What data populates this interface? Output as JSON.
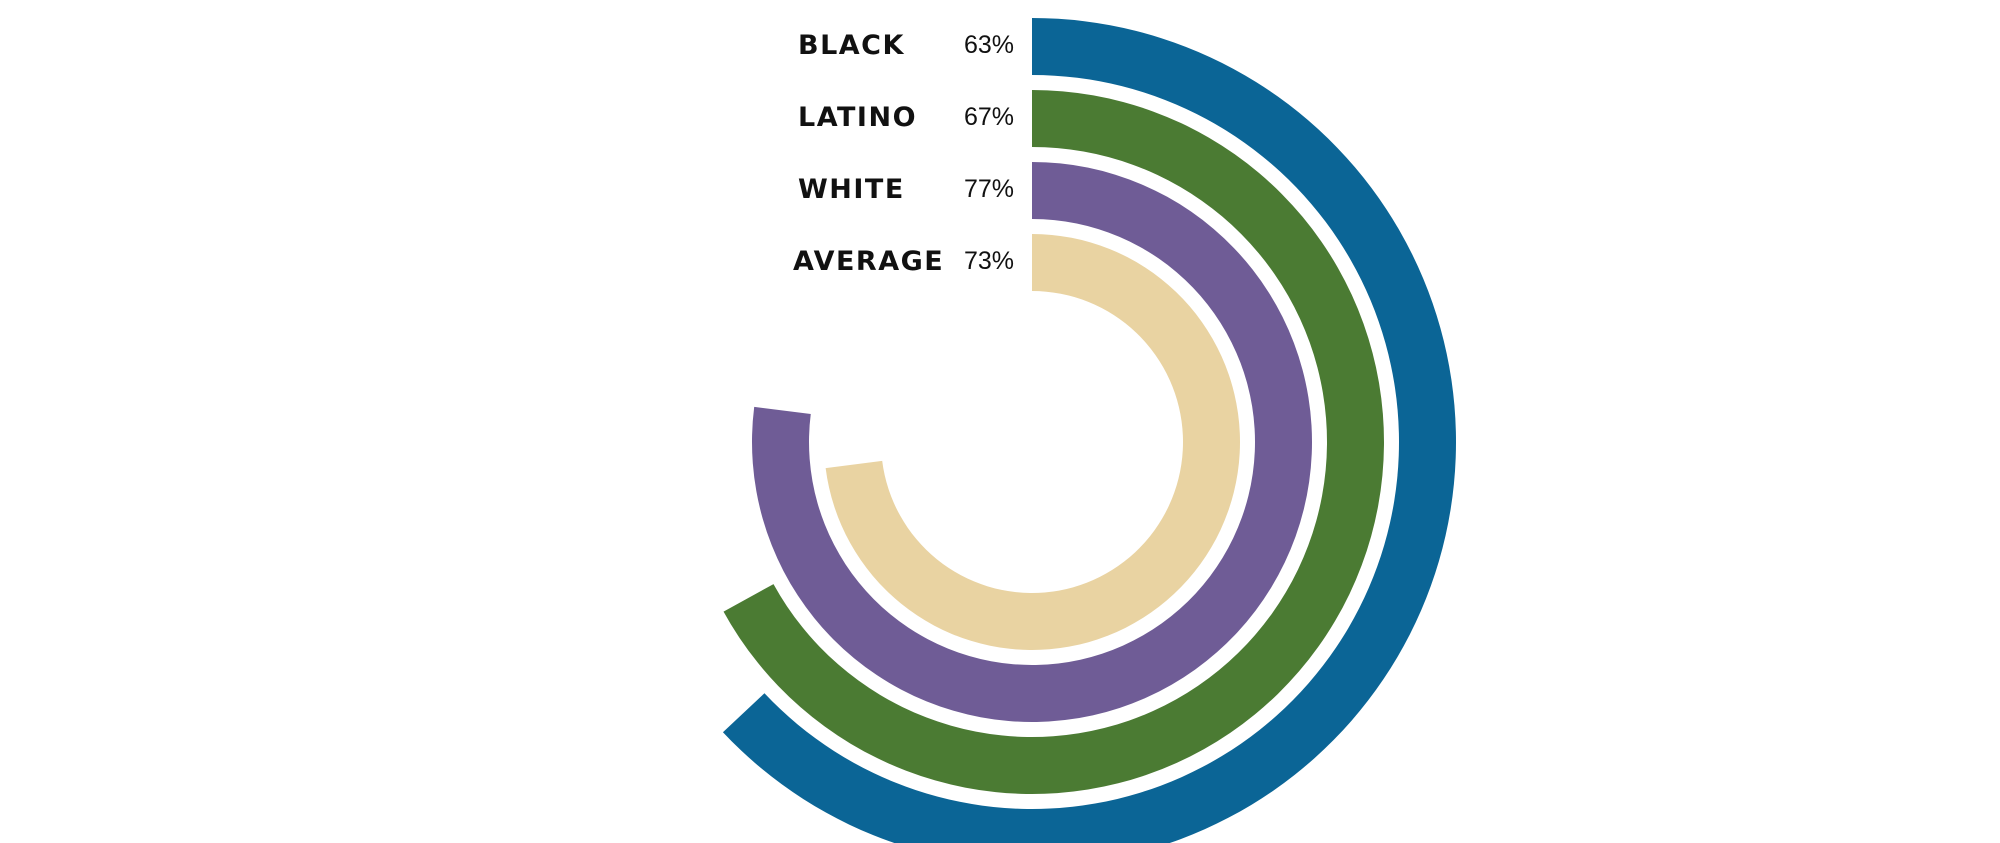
{
  "chart_data": {
    "type": "radial-bar",
    "unit": "%",
    "series": [
      {
        "name": "BLACK",
        "value": 63,
        "label": "63%",
        "color": "#0b6596"
      },
      {
        "name": "LATINO",
        "value": 67,
        "label": "67%",
        "color": "#4b7b33"
      },
      {
        "name": "WHITE",
        "value": 77,
        "label": "77%",
        "color": "#6f5c96"
      },
      {
        "name": "AVERAGE",
        "value": 73,
        "label": "73%",
        "color": "#e9d3a2"
      }
    ],
    "range": [
      0,
      100
    ]
  }
}
